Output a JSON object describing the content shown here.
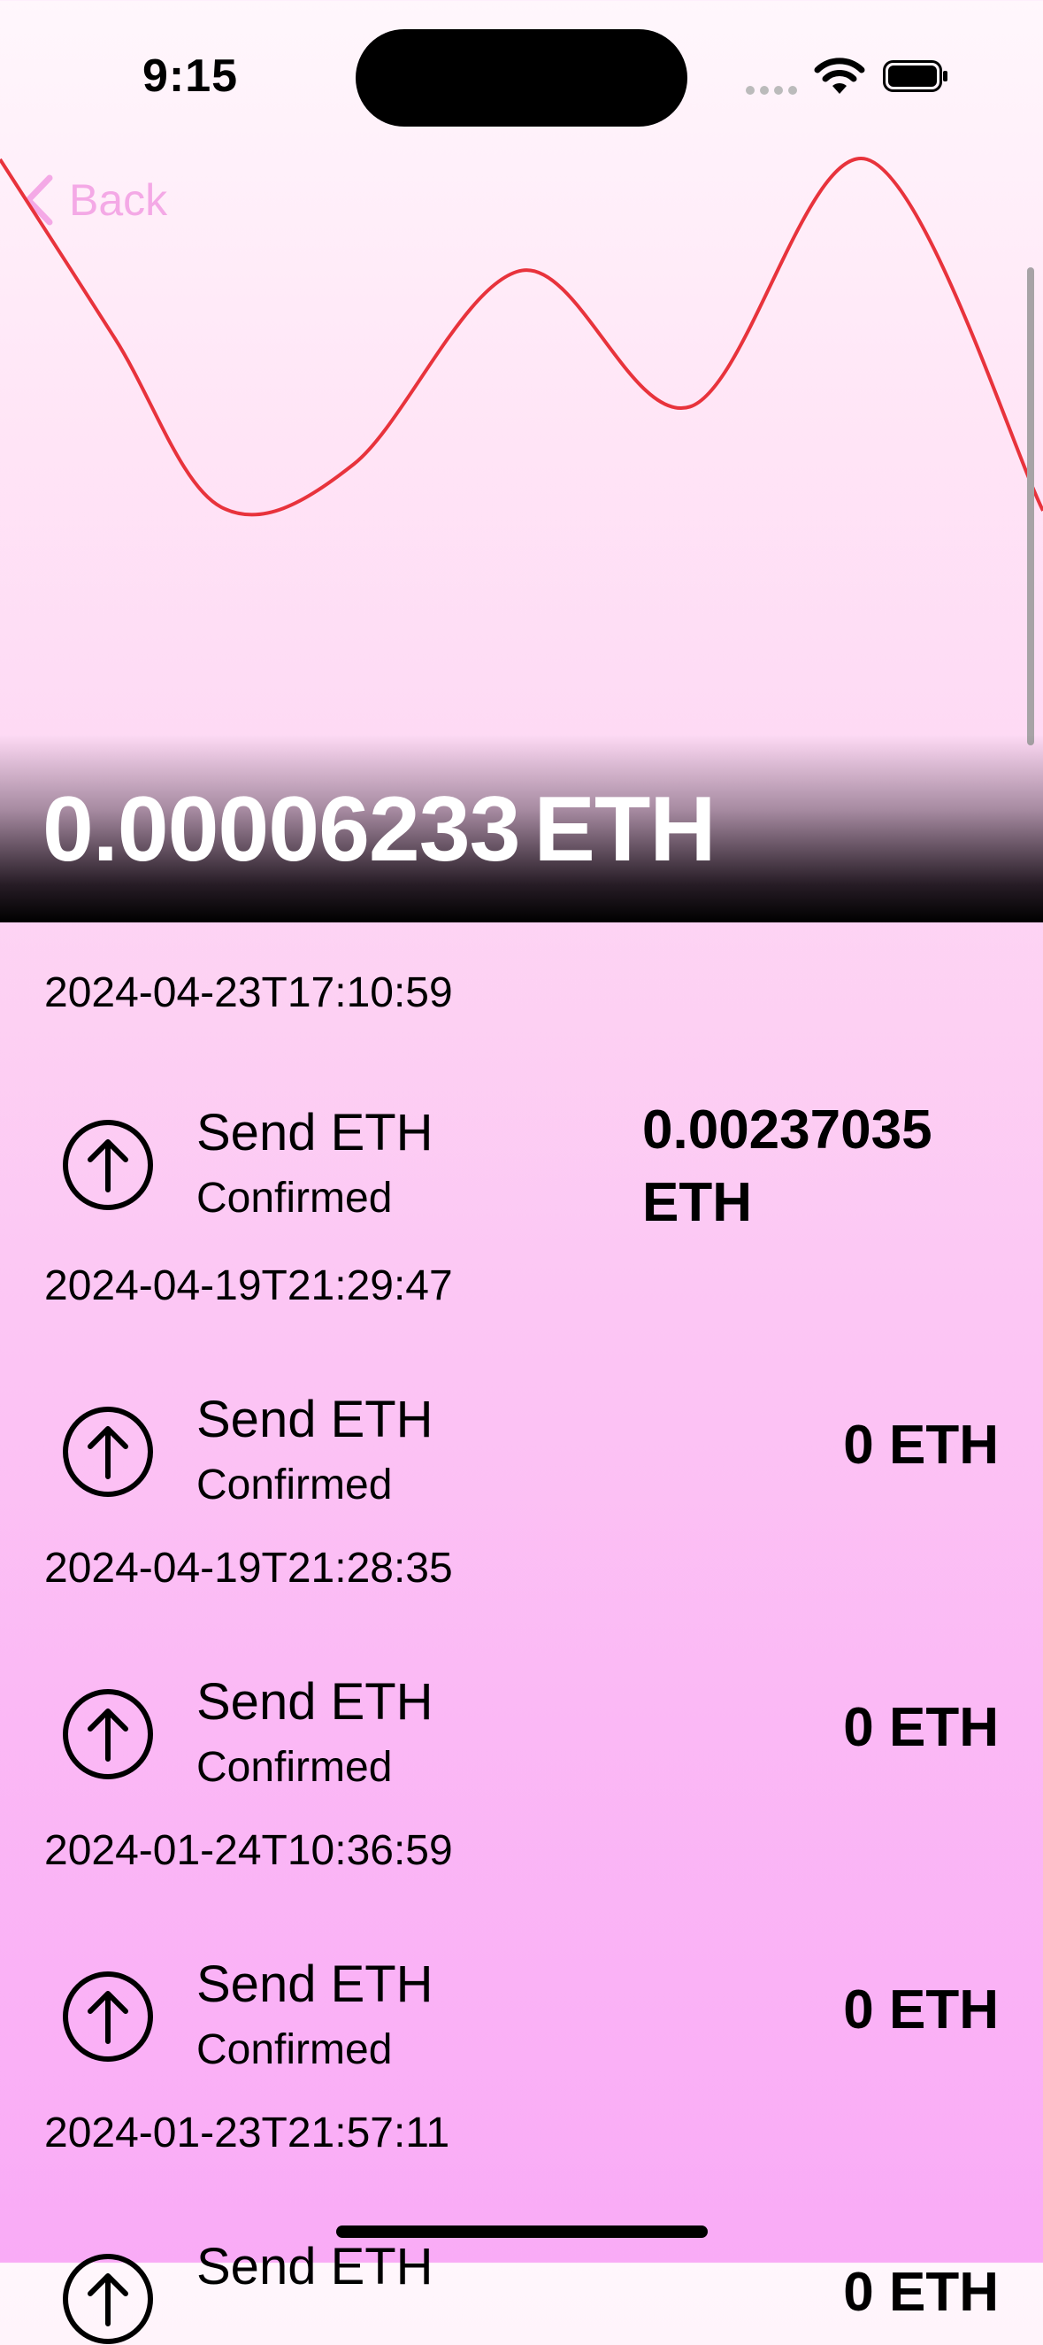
{
  "status_bar": {
    "time": "9:15"
  },
  "nav": {
    "back_label": "Back"
  },
  "balance": {
    "amount": "0.00006233",
    "unit": "ETH"
  },
  "chart_data": {
    "type": "line",
    "title": "",
    "xlabel": "",
    "ylabel": "",
    "line_color": "#e8333c",
    "series": [
      {
        "values": [
          1.0,
          0.5,
          0.03,
          0.15,
          0.69,
          0.31,
          1.0,
          0.02
        ]
      }
    ]
  },
  "transactions": [
    {
      "date": "2024-04-23T17:10:59",
      "title": "Send ETH",
      "status": "Confirmed",
      "amount": "0.00237035 ETH",
      "icon": "arrow-up-circle-icon"
    },
    {
      "date": "2024-04-19T21:29:47",
      "title": "Send ETH",
      "status": "Confirmed",
      "amount": "0 ETH",
      "icon": "arrow-up-circle-icon"
    },
    {
      "date": "2024-04-19T21:28:35",
      "title": "Send ETH",
      "status": "Confirmed",
      "amount": "0 ETH",
      "icon": "arrow-up-circle-icon"
    },
    {
      "date": "2024-01-24T10:36:59",
      "title": "Send ETH",
      "status": "Confirmed",
      "amount": "0 ETH",
      "icon": "arrow-up-circle-icon"
    },
    {
      "date": "2024-01-23T21:57:11",
      "title": "Send ETH",
      "status": "",
      "amount": "0 ETH",
      "icon": "arrow-up-circle-icon"
    }
  ]
}
